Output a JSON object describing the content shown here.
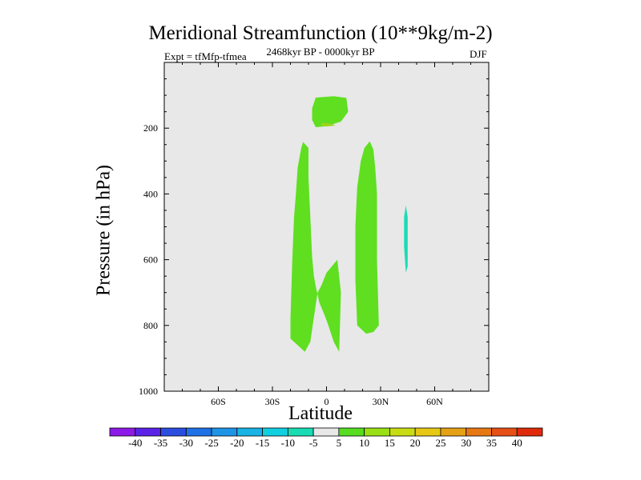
{
  "chart_data": {
    "type": "contour",
    "title": "Meridional Streamfunction (10**9kg/m-2)",
    "experiment": "Expt = tfMfp-tfmea",
    "period": "2468kyr BP - 0000kyr BP",
    "season": "DJF",
    "xlabel": "Latitude",
    "ylabel": "Pressure (in hPa)",
    "xlim": [
      -90,
      90
    ],
    "ylim": [
      1000,
      0
    ],
    "x_ticks": [
      {
        "value": -60,
        "label": "60S"
      },
      {
        "value": -30,
        "label": "30S"
      },
      {
        "value": 0,
        "label": "0"
      },
      {
        "value": 30,
        "label": "30N"
      },
      {
        "value": 60,
        "label": "60N"
      }
    ],
    "y_ticks": [
      {
        "value": 200,
        "label": "200"
      },
      {
        "value": 400,
        "label": "400"
      },
      {
        "value": 600,
        "label": "600"
      },
      {
        "value": 800,
        "label": "800"
      },
      {
        "value": 1000,
        "label": "1000"
      }
    ],
    "background_color": "#e8e8e8",
    "colorbar": {
      "labels": [
        "-40",
        "-35",
        "-30",
        "-25",
        "-20",
        "-15",
        "-10",
        "-5",
        "5",
        "10",
        "15",
        "20",
        "25",
        "30",
        "35",
        "40"
      ],
      "colors": [
        "#8c1ae6",
        "#5a22e6",
        "#2a4ee0",
        "#1f72e6",
        "#1e94e6",
        "#19b3e6",
        "#10cfe0",
        "#1adcb4",
        "#e8e8e8",
        "#56dd22",
        "#9ae014",
        "#c8dc14",
        "#e6c814",
        "#e6a014",
        "#e67814",
        "#e65014",
        "#e02a0a"
      ]
    },
    "regions": [
      {
        "name": "upper-positive-cell",
        "color": "#5fdf20",
        "points": [
          [
            -6,
            107
          ],
          [
            4,
            103
          ],
          [
            11,
            108
          ],
          [
            12,
            150
          ],
          [
            8,
            180
          ],
          [
            0,
            194
          ],
          [
            -6,
            197
          ],
          [
            -8,
            175
          ],
          [
            -8,
            140
          ]
        ]
      },
      {
        "name": "upper-cell-core",
        "color": "#9bd51a",
        "points": [
          [
            -3,
            184
          ],
          [
            2,
            186
          ],
          [
            5,
            192
          ],
          [
            0,
            195
          ],
          [
            -3,
            193
          ]
        ]
      },
      {
        "name": "southern-positive-cell",
        "color": "#5fdf20",
        "points": [
          [
            -13,
            242
          ],
          [
            -10,
            260
          ],
          [
            -10,
            350
          ],
          [
            -9,
            470
          ],
          [
            -8,
            590
          ],
          [
            -7,
            650
          ],
          [
            -6,
            680
          ],
          [
            -4,
            730
          ],
          [
            -1,
            770
          ],
          [
            1,
            800
          ],
          [
            4,
            850
          ],
          [
            7,
            880
          ],
          [
            8,
            700
          ],
          [
            6,
            600
          ],
          [
            0,
            640
          ],
          [
            -3,
            680
          ],
          [
            -5,
            700
          ],
          [
            -9,
            850
          ],
          [
            -12,
            880
          ],
          [
            -16,
            860
          ],
          [
            -20,
            840
          ],
          [
            -20,
            780
          ],
          [
            -19,
            600
          ],
          [
            -18,
            470
          ],
          [
            -17,
            400
          ],
          [
            -16,
            320
          ],
          [
            -14,
            260
          ]
        ]
      },
      {
        "name": "northern-positive-cell",
        "color": "#5fdf20",
        "points": [
          [
            24,
            240
          ],
          [
            26,
            265
          ],
          [
            27,
            320
          ],
          [
            28,
            400
          ],
          [
            28,
            600
          ],
          [
            29,
            800
          ],
          [
            26,
            820
          ],
          [
            22,
            825
          ],
          [
            17,
            800
          ],
          [
            16,
            660
          ],
          [
            16,
            500
          ],
          [
            17,
            380
          ],
          [
            19,
            300
          ],
          [
            21,
            260
          ]
        ]
      },
      {
        "name": "negative-sliver",
        "color": "#1adcb4",
        "points": [
          [
            44,
            435
          ],
          [
            45,
            470
          ],
          [
            45,
            620
          ],
          [
            44,
            640
          ],
          [
            43,
            560
          ],
          [
            43,
            470
          ]
        ]
      }
    ]
  }
}
